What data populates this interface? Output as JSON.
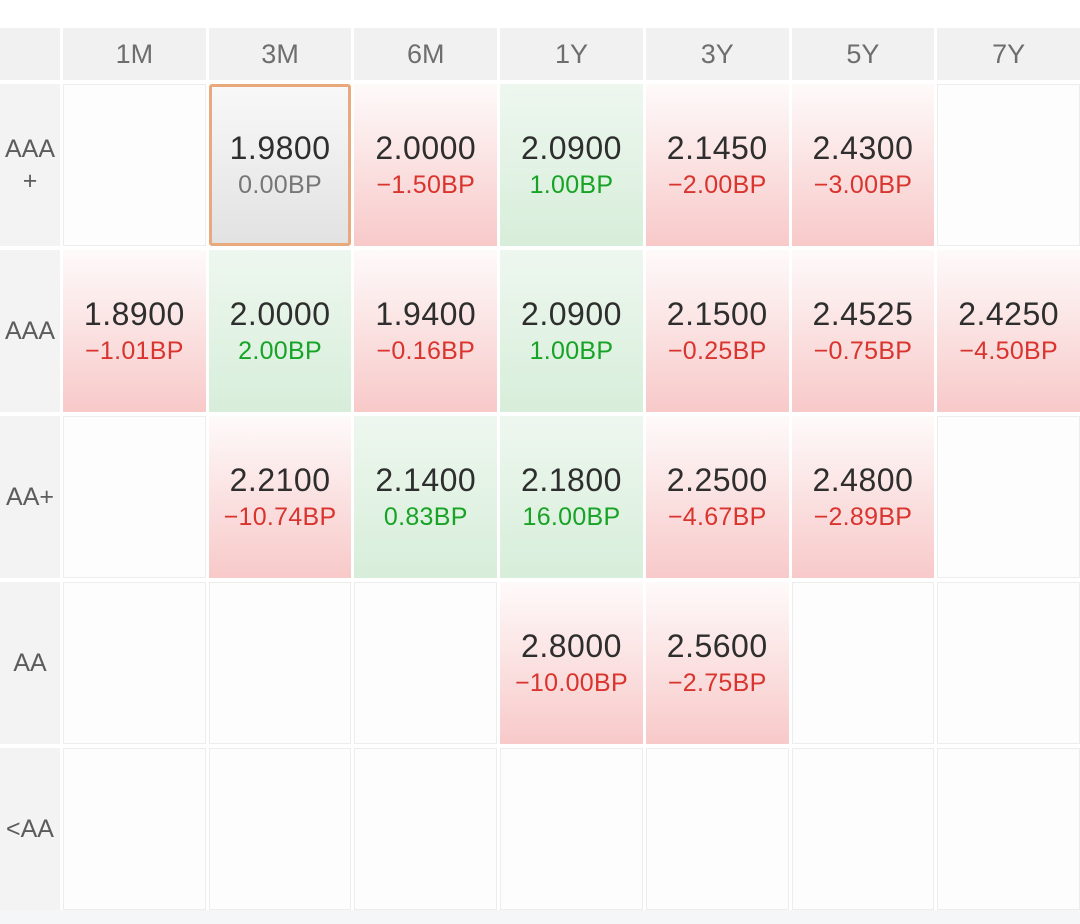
{
  "table": {
    "columns": [
      "1M",
      "3M",
      "6M",
      "1Y",
      "3Y",
      "5Y",
      "7Y"
    ],
    "rows": [
      {
        "label": "AAA +",
        "cells": [
          null,
          {
            "rate": "1.9800",
            "change": "0.00BP",
            "trend": "flat",
            "selected": true
          },
          {
            "rate": "2.0000",
            "change": "−1.50BP",
            "trend": "down"
          },
          {
            "rate": "2.0900",
            "change": "1.00BP",
            "trend": "up"
          },
          {
            "rate": "2.1450",
            "change": "−2.00BP",
            "trend": "down"
          },
          {
            "rate": "2.4300",
            "change": "−3.00BP",
            "trend": "down"
          },
          null
        ]
      },
      {
        "label": "AAA",
        "cells": [
          {
            "rate": "1.8900",
            "change": "−1.01BP",
            "trend": "down"
          },
          {
            "rate": "2.0000",
            "change": "2.00BP",
            "trend": "up"
          },
          {
            "rate": "1.9400",
            "change": "−0.16BP",
            "trend": "down"
          },
          {
            "rate": "2.0900",
            "change": "1.00BP",
            "trend": "up"
          },
          {
            "rate": "2.1500",
            "change": "−0.25BP",
            "trend": "down"
          },
          {
            "rate": "2.4525",
            "change": "−0.75BP",
            "trend": "down"
          },
          {
            "rate": "2.4250",
            "change": "−4.50BP",
            "trend": "down"
          }
        ]
      },
      {
        "label": "AA+",
        "cells": [
          null,
          {
            "rate": "2.2100",
            "change": "−10.74BP",
            "trend": "down"
          },
          {
            "rate": "2.1400",
            "change": "0.83BP",
            "trend": "up"
          },
          {
            "rate": "2.1800",
            "change": "16.00BP",
            "trend": "up"
          },
          {
            "rate": "2.2500",
            "change": "−4.67BP",
            "trend": "down"
          },
          {
            "rate": "2.4800",
            "change": "−2.89BP",
            "trend": "down"
          },
          null
        ]
      },
      {
        "label": "AA",
        "cells": [
          null,
          null,
          null,
          {
            "rate": "2.8000",
            "change": "−10.00BP",
            "trend": "down"
          },
          {
            "rate": "2.5600",
            "change": "−2.75BP",
            "trend": "down"
          },
          null,
          null
        ]
      },
      {
        "label": "<AA",
        "cells": [
          null,
          null,
          null,
          null,
          null,
          null,
          null
        ]
      }
    ]
  },
  "colors": {
    "accent_selected_border": "#E9A97C",
    "negative_text": "#D9342E",
    "positive_text": "#17A325",
    "neutral_text": "#777777",
    "negative_fill_top": "#FEFAFA",
    "negative_fill_bottom": "#F8C9C9",
    "positive_fill_top": "#EEF7EF",
    "positive_fill_bottom": "#D7EEDA",
    "selected_fill_top": "#F8F8F8",
    "selected_fill_bottom": "#E2E2E2"
  }
}
